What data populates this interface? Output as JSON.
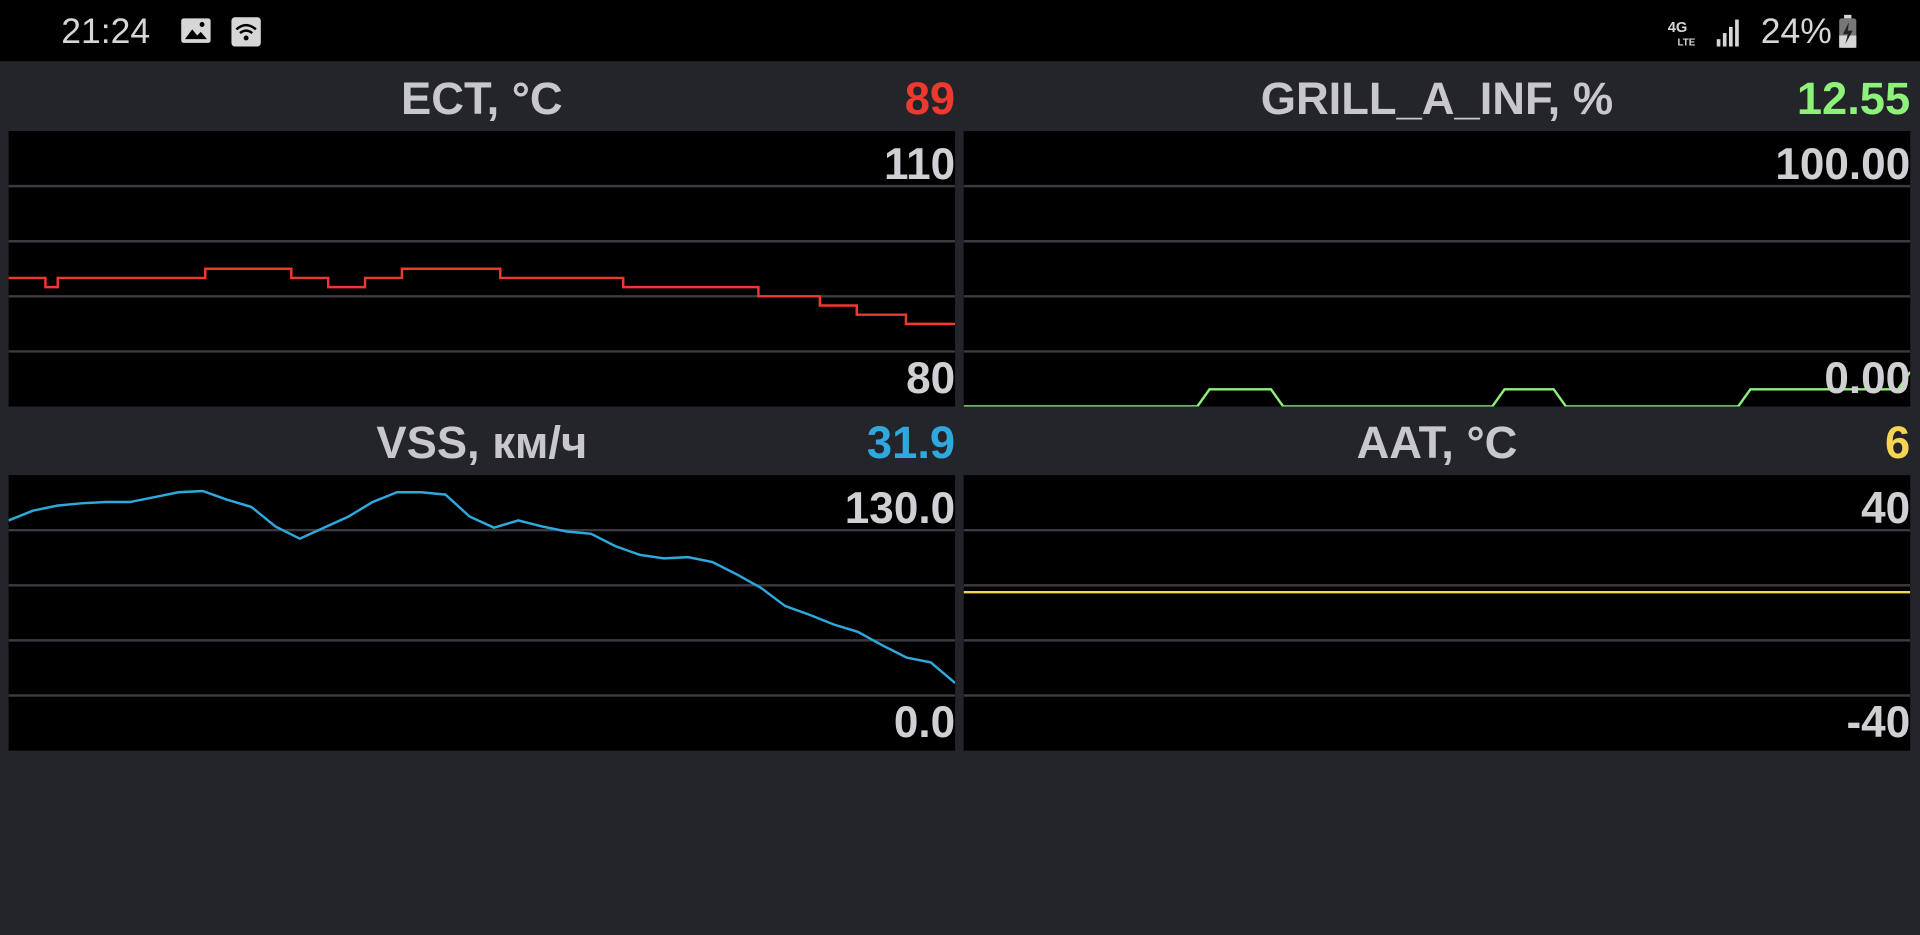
{
  "status_bar": {
    "time": "21:24",
    "battery": "24%",
    "icons": [
      "image-icon",
      "wifi-icon",
      "4g-lte-icon",
      "signal-icon",
      "battery-charging-icon"
    ]
  },
  "panels": [
    {
      "label": "ECT, °C",
      "value": "89",
      "color": "#f0392e",
      "axis_max": "110",
      "axis_min": "80"
    },
    {
      "label": "GRILL_A_INF, %",
      "value": "12.55",
      "color": "#8ef27a",
      "axis_max": "100.00",
      "axis_min": "0.00"
    },
    {
      "label": "VSS, км/ч",
      "value": "31.9",
      "color": "#2fa8de",
      "axis_max": "130.0",
      "axis_min": "0.0"
    },
    {
      "label": "AAT, °C",
      "value": "6",
      "color": "#f5d552",
      "axis_max": "40",
      "axis_min": "-40"
    }
  ],
  "chart_data": [
    {
      "type": "line",
      "step": true,
      "ylim": [
        80,
        110
      ],
      "values": [
        94,
        94,
        94,
        93,
        94,
        94,
        94,
        94,
        94,
        94,
        94,
        94,
        94,
        94,
        94,
        94,
        95,
        95,
        95,
        95,
        95,
        95,
        95,
        94,
        94,
        94,
        93,
        93,
        93,
        94,
        94,
        94,
        95,
        95,
        95,
        95,
        95,
        95,
        95,
        95,
        94,
        94,
        94,
        94,
        94,
        94,
        94,
        94,
        94,
        94,
        93,
        93,
        93,
        93,
        93,
        93,
        93,
        93,
        93,
        93,
        93,
        92,
        92,
        92,
        92,
        92,
        91,
        91,
        91,
        90,
        90,
        90,
        90,
        89,
        89,
        89,
        89,
        89
      ]
    },
    {
      "type": "line",
      "ylim": [
        0,
        100
      ],
      "values": [
        0,
        0,
        0,
        0,
        0,
        0,
        0,
        0,
        0,
        0,
        0,
        0,
        0,
        0,
        0,
        0,
        0,
        0,
        0,
        0,
        6.25,
        6.25,
        6.25,
        6.25,
        6.25,
        6.25,
        0,
        0,
        0,
        0,
        0,
        0,
        0,
        0,
        0,
        0,
        0,
        0,
        0,
        0,
        0,
        0,
        0,
        0,
        6.25,
        6.25,
        6.25,
        6.25,
        6.25,
        0,
        0,
        0,
        0,
        0,
        0,
        0,
        0,
        0,
        0,
        0,
        0,
        0,
        0,
        0,
        6.25,
        6.25,
        6.25,
        6.25,
        6.25,
        6.25,
        6.25,
        6.25,
        6.25,
        6.25,
        6.25,
        6.25,
        6.25,
        12.55
      ]
    },
    {
      "type": "line",
      "ylim": [
        0,
        130
      ],
      "values": [
        108.6,
        113.2,
        115.6,
        116.7,
        117.3,
        117.3,
        119.6,
        121.9,
        122.5,
        118.4,
        115,
        105.7,
        100,
        105.2,
        110.4,
        117.3,
        121.9,
        121.9,
        120.8,
        110.4,
        105.2,
        108.6,
        105.7,
        103.4,
        102.3,
        96.5,
        92.4,
        90.7,
        91.3,
        89,
        83.2,
        76.8,
        68.2,
        64.1,
        59.5,
        56,
        49.7,
        43.9,
        41.6,
        31.9
      ]
    },
    {
      "type": "line",
      "ylim": [
        -40,
        40
      ],
      "values": [
        6,
        6
      ]
    }
  ]
}
